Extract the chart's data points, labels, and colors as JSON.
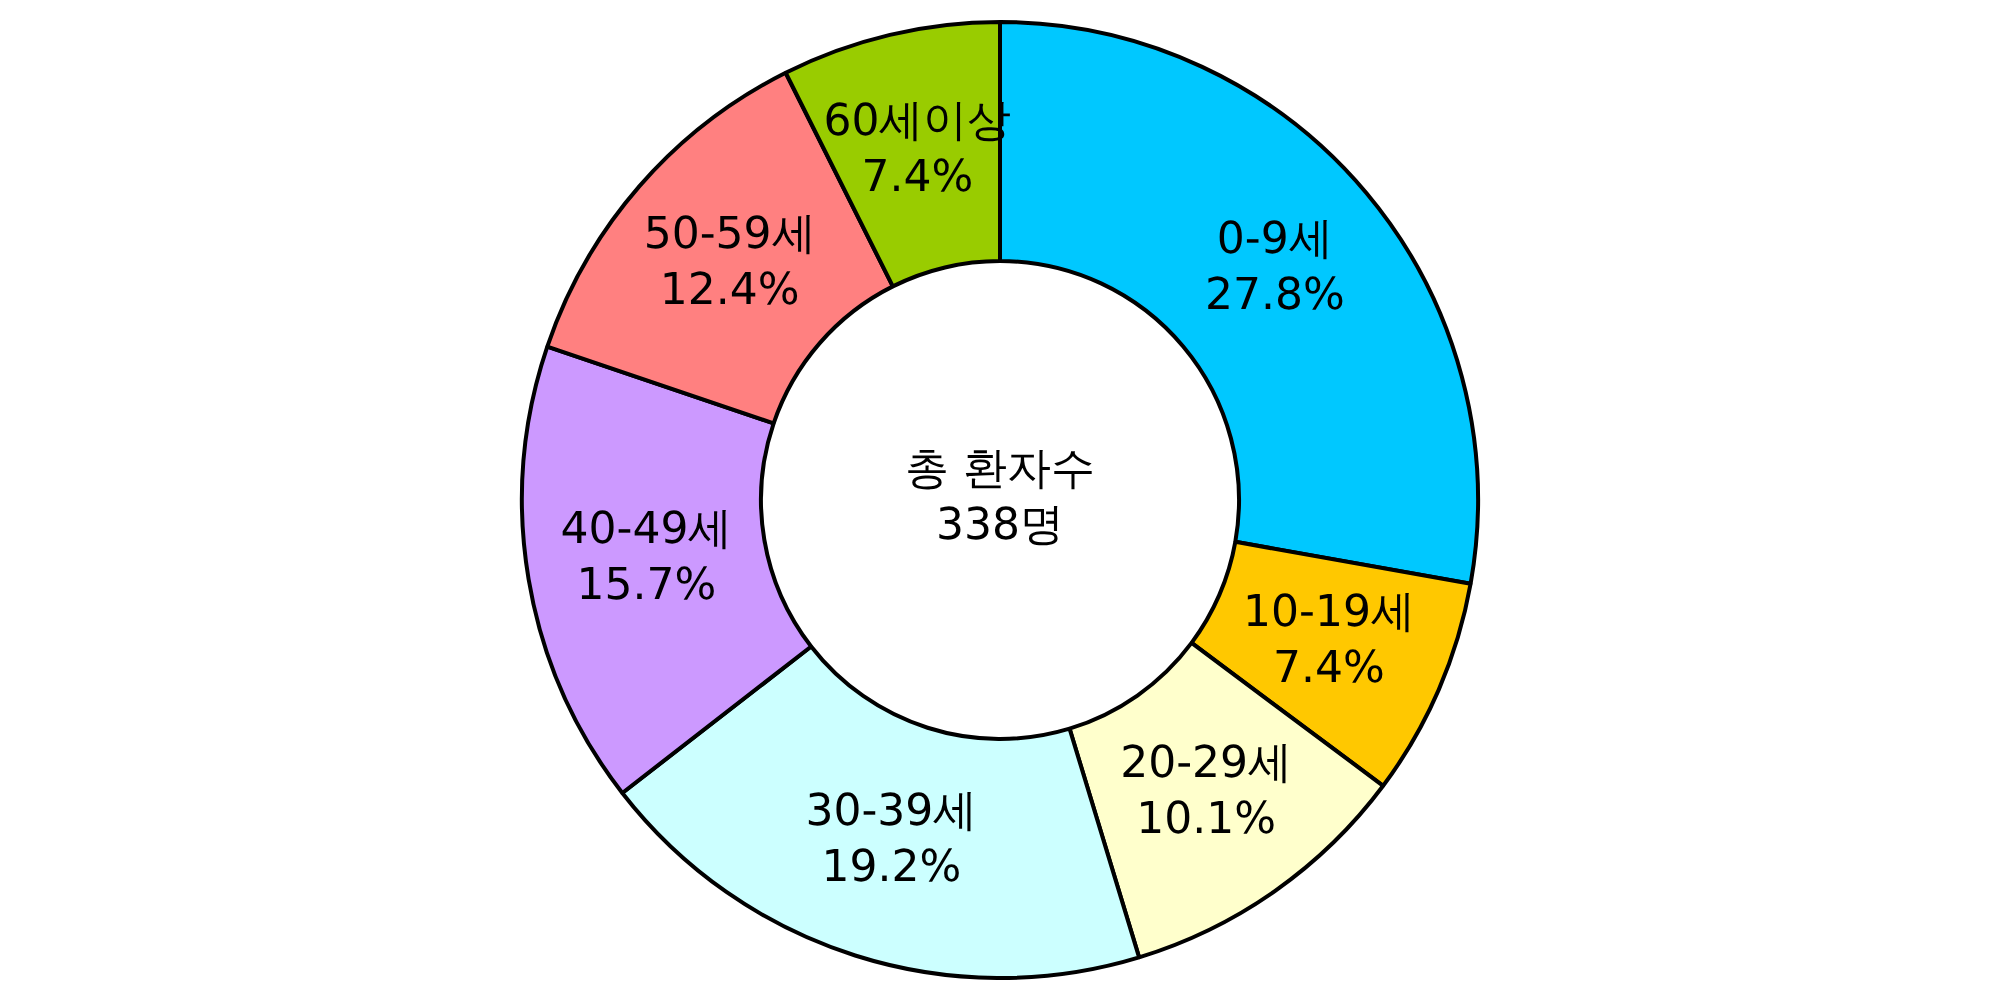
{
  "chart_data": {
    "type": "donut",
    "categories": [
      "0-9세",
      "10-19세",
      "20-29세",
      "30-39세",
      "40-49세",
      "50-59세",
      "60세이상"
    ],
    "values": [
      27.8,
      7.4,
      10.1,
      19.2,
      15.7,
      12.4,
      7.4
    ],
    "value_labels": [
      "27.8%",
      "7.4%",
      "10.1%",
      "19.2%",
      "15.7%",
      "12.4%",
      "7.4%"
    ],
    "colors": [
      "#00c8ff",
      "#ffc800",
      "#ffffcc",
      "#ccffff",
      "#cc99ff",
      "#ff8080",
      "#99cc00"
    ],
    "legend": false,
    "annotations": [
      "총 환자수",
      "338명"
    ]
  }
}
